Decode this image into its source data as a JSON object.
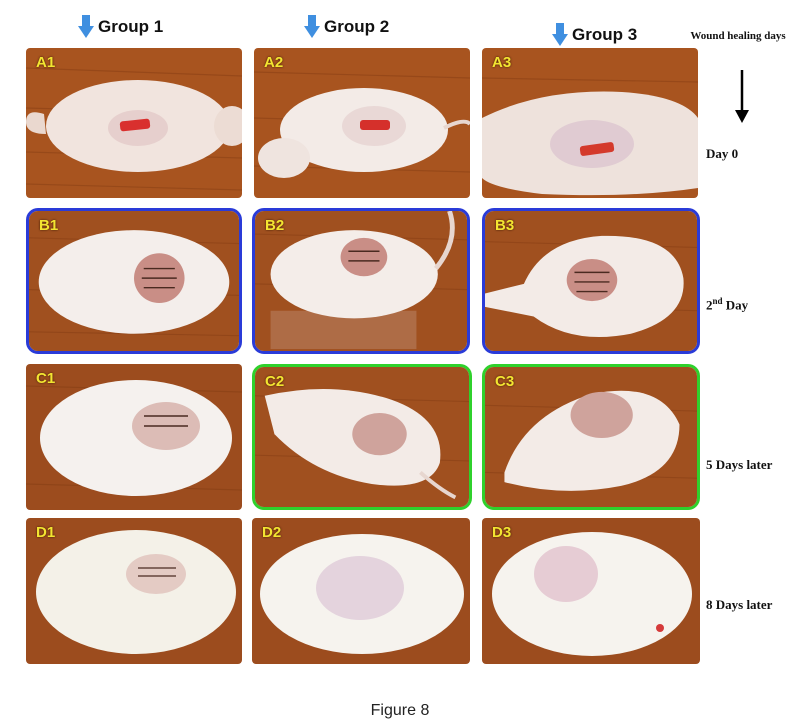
{
  "groups": [
    {
      "label": "Group 1"
    },
    {
      "label": "Group 2"
    },
    {
      "label": "Group 3"
    }
  ],
  "axis_title": "Wound healing days",
  "rows": [
    {
      "day_main": "Day 0",
      "day_sup": "",
      "day_tail": "",
      "panels": [
        "A1",
        "A2",
        "A3"
      ]
    },
    {
      "day_main": "2",
      "day_sup": "nd",
      "day_tail": " Day",
      "panels": [
        "B1",
        "B2",
        "B3"
      ]
    },
    {
      "day_main": "5 Days later",
      "day_sup": "",
      "day_tail": "",
      "panels": [
        "C1",
        "C2",
        "C3"
      ]
    },
    {
      "day_main": "8 Days later",
      "day_sup": "",
      "day_tail": "",
      "panels": [
        "D1",
        "D2",
        "D3"
      ]
    }
  ],
  "caption": "Figure 8",
  "colors": {
    "arrow": "#3f8fe0",
    "highlight_day2": "#2a3bd8",
    "highlight_day5": "#2fd12c",
    "panel_label": "#f3e531"
  }
}
